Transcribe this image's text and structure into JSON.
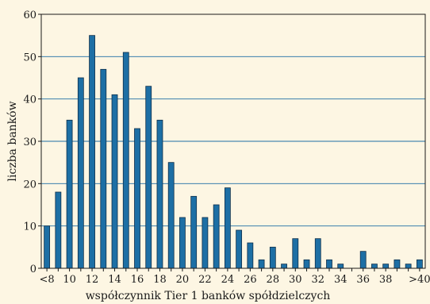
{
  "chart_data": {
    "type": "bar",
    "xlabel": "współczynnik Tier 1 banków spółdzielczych",
    "ylabel": "liczba banków",
    "ylim": [
      0,
      60
    ],
    "yticks": [
      0,
      10,
      20,
      30,
      40,
      50,
      60
    ],
    "grid": true,
    "bar_color": "#1d6fa5",
    "background": "#fdf6e3",
    "categories": [
      "<8",
      "9",
      "10",
      "11",
      "12",
      "13",
      "14",
      "15",
      "16",
      "17",
      "18",
      "19",
      "20",
      "21",
      "22",
      "23",
      "24",
      "25",
      "26",
      "27",
      "28",
      "29",
      "30",
      "31",
      "32",
      "33",
      "34",
      "35",
      "36",
      "37",
      "38",
      "39",
      "40",
      ">40"
    ],
    "values": [
      10,
      18,
      35,
      45,
      55,
      47,
      41,
      51,
      33,
      43,
      35,
      25,
      12,
      17,
      12,
      15,
      19,
      9,
      6,
      2,
      5,
      1,
      7,
      2,
      7,
      2,
      1,
      0,
      4,
      1,
      1,
      2,
      1,
      2
    ],
    "tick_labels": [
      {
        "index": 0,
        "text": "<8"
      },
      {
        "index": 2,
        "text": "10"
      },
      {
        "index": 4,
        "text": "12"
      },
      {
        "index": 6,
        "text": "14"
      },
      {
        "index": 8,
        "text": "16"
      },
      {
        "index": 10,
        "text": "18"
      },
      {
        "index": 12,
        "text": "20"
      },
      {
        "index": 14,
        "text": "22"
      },
      {
        "index": 16,
        "text": "24"
      },
      {
        "index": 18,
        "text": "26"
      },
      {
        "index": 20,
        "text": "28"
      },
      {
        "index": 22,
        "text": "30"
      },
      {
        "index": 24,
        "text": "32"
      },
      {
        "index": 26,
        "text": "34"
      },
      {
        "index": 28,
        "text": "36"
      },
      {
        "index": 30,
        "text": "38"
      },
      {
        "index": 33,
        "text": ">40"
      }
    ]
  }
}
